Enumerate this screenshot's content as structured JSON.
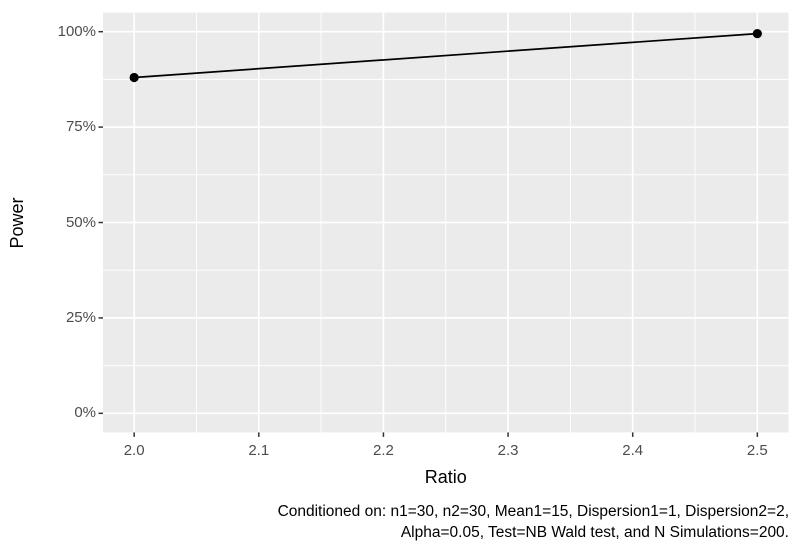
{
  "chart_data": {
    "type": "line",
    "title": "",
    "xlabel": "Ratio",
    "ylabel": "Power",
    "series": [
      {
        "name": "Power",
        "x": [
          2.0,
          2.5
        ],
        "y": [
          0.88,
          0.995
        ]
      }
    ],
    "x_ticks": [
      {
        "value": 2.0,
        "label": "2.0"
      },
      {
        "value": 2.1,
        "label": "2.1"
      },
      {
        "value": 2.2,
        "label": "2.2"
      },
      {
        "value": 2.3,
        "label": "2.3"
      },
      {
        "value": 2.4,
        "label": "2.4"
      },
      {
        "value": 2.5,
        "label": "2.5"
      }
    ],
    "y_ticks": [
      {
        "value": 0.0,
        "label": "0%"
      },
      {
        "value": 0.25,
        "label": "25%"
      },
      {
        "value": 0.5,
        "label": "50%"
      },
      {
        "value": 0.75,
        "label": "75%"
      },
      {
        "value": 1.0,
        "label": "100%"
      }
    ],
    "x_minor_ticks": [
      2.05,
      2.15,
      2.25,
      2.35,
      2.45
    ],
    "y_minor_ticks": [
      0.125,
      0.375,
      0.625,
      0.875
    ],
    "xlim": [
      1.975,
      2.525
    ],
    "ylim": [
      -0.05,
      1.05
    ],
    "grid": "major-and-minor",
    "legend": "none",
    "caption": "Conditioned on: n1=30, n2=30, Mean1=15, Dispersion1=1, Dispersion2=2, Alpha=0.05, Test=NB Wald test, and N Simulations=200.",
    "colors": {
      "panel_background": "#EBEBEB",
      "grid_line": "#FFFFFF",
      "data_line": "#000000",
      "data_point": "#000000",
      "tick_label": "#4D4D4D",
      "axis_title": "#000000",
      "tick_mark": "#333333",
      "figure_background": "#FFFFFF"
    }
  },
  "caption": {
    "line1": "Conditioned on: n1=30, n2=30, Mean1=15, Dispersion1=1, Dispersion2=2,",
    "line2": "Alpha=0.05, Test=NB Wald test, and N Simulations=200."
  }
}
